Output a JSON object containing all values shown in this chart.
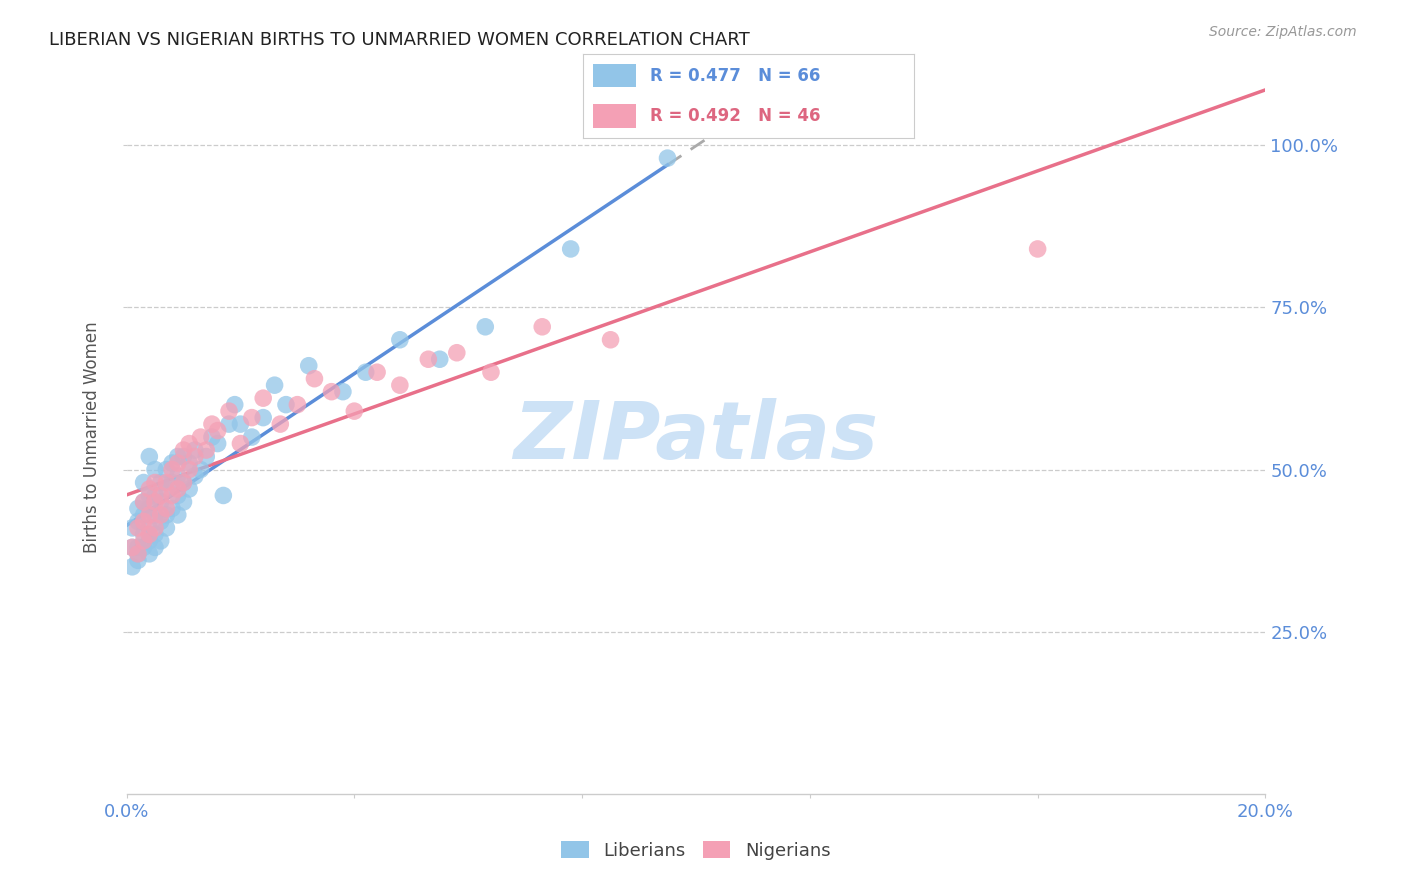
{
  "title": "LIBERIAN VS NIGERIAN BIRTHS TO UNMARRIED WOMEN CORRELATION CHART",
  "source": "Source: ZipAtlas.com",
  "ylabel": "Births to Unmarried Women",
  "legend_lib": "R = 0.477   N = 66",
  "legend_nig": "R = 0.492   N = 46",
  "legend_lib_label": "Liberians",
  "legend_nig_label": "Nigerians",
  "color_lib": "#92c5e8",
  "color_nig": "#f4a0b5",
  "color_axis_text": "#5b8dd9",
  "lib_x": [
    0.001,
    0.001,
    0.001,
    0.002,
    0.002,
    0.002,
    0.002,
    0.002,
    0.003,
    0.003,
    0.003,
    0.003,
    0.003,
    0.004,
    0.004,
    0.004,
    0.004,
    0.004,
    0.004,
    0.005,
    0.005,
    0.005,
    0.005,
    0.005,
    0.006,
    0.006,
    0.006,
    0.006,
    0.007,
    0.007,
    0.007,
    0.007,
    0.008,
    0.008,
    0.008,
    0.009,
    0.009,
    0.009,
    0.009,
    0.01,
    0.01,
    0.01,
    0.011,
    0.011,
    0.012,
    0.012,
    0.013,
    0.014,
    0.015,
    0.016,
    0.017,
    0.018,
    0.019,
    0.02,
    0.022,
    0.024,
    0.026,
    0.028,
    0.032,
    0.038,
    0.042,
    0.048,
    0.055,
    0.063,
    0.078,
    0.095
  ],
  "lib_y": [
    0.38,
    0.41,
    0.35,
    0.37,
    0.42,
    0.38,
    0.44,
    0.36,
    0.4,
    0.43,
    0.38,
    0.45,
    0.48,
    0.37,
    0.41,
    0.44,
    0.46,
    0.39,
    0.52,
    0.4,
    0.43,
    0.46,
    0.38,
    0.5,
    0.42,
    0.45,
    0.48,
    0.39,
    0.43,
    0.47,
    0.5,
    0.41,
    0.44,
    0.48,
    0.51,
    0.43,
    0.46,
    0.49,
    0.52,
    0.45,
    0.48,
    0.52,
    0.47,
    0.51,
    0.49,
    0.53,
    0.5,
    0.52,
    0.55,
    0.54,
    0.46,
    0.57,
    0.6,
    0.57,
    0.55,
    0.58,
    0.63,
    0.6,
    0.66,
    0.62,
    0.65,
    0.7,
    0.67,
    0.72,
    0.84,
    0.98
  ],
  "nig_x": [
    0.001,
    0.002,
    0.002,
    0.003,
    0.003,
    0.003,
    0.004,
    0.004,
    0.004,
    0.005,
    0.005,
    0.005,
    0.006,
    0.006,
    0.007,
    0.007,
    0.008,
    0.008,
    0.009,
    0.009,
    0.01,
    0.01,
    0.011,
    0.011,
    0.012,
    0.013,
    0.014,
    0.015,
    0.016,
    0.018,
    0.02,
    0.022,
    0.024,
    0.027,
    0.03,
    0.033,
    0.036,
    0.04,
    0.044,
    0.048,
    0.053,
    0.058,
    0.064,
    0.073,
    0.085,
    0.16
  ],
  "nig_y": [
    0.38,
    0.37,
    0.41,
    0.39,
    0.42,
    0.45,
    0.4,
    0.43,
    0.47,
    0.41,
    0.45,
    0.48,
    0.43,
    0.46,
    0.44,
    0.48,
    0.46,
    0.5,
    0.47,
    0.51,
    0.48,
    0.53,
    0.5,
    0.54,
    0.52,
    0.55,
    0.53,
    0.57,
    0.56,
    0.59,
    0.54,
    0.58,
    0.61,
    0.57,
    0.6,
    0.64,
    0.62,
    0.59,
    0.65,
    0.63,
    0.67,
    0.68,
    0.65,
    0.72,
    0.7,
    0.84
  ],
  "xlim": [
    0.0,
    0.2
  ],
  "ylim": [
    0.0,
    1.1
  ],
  "yticks": [
    0.25,
    0.5,
    0.75,
    1.0
  ],
  "ytick_labels": [
    "25.0%",
    "50.0%",
    "75.0%",
    "100.0%"
  ],
  "background_color": "#ffffff",
  "grid_color": "#cccccc",
  "lib_line_color": "#5b8dd9",
  "nig_line_color": "#e8708a",
  "dashed_line_color": "#aaaaaa",
  "watermark": "ZIPatlas",
  "watermark_color": "#c8dff5"
}
